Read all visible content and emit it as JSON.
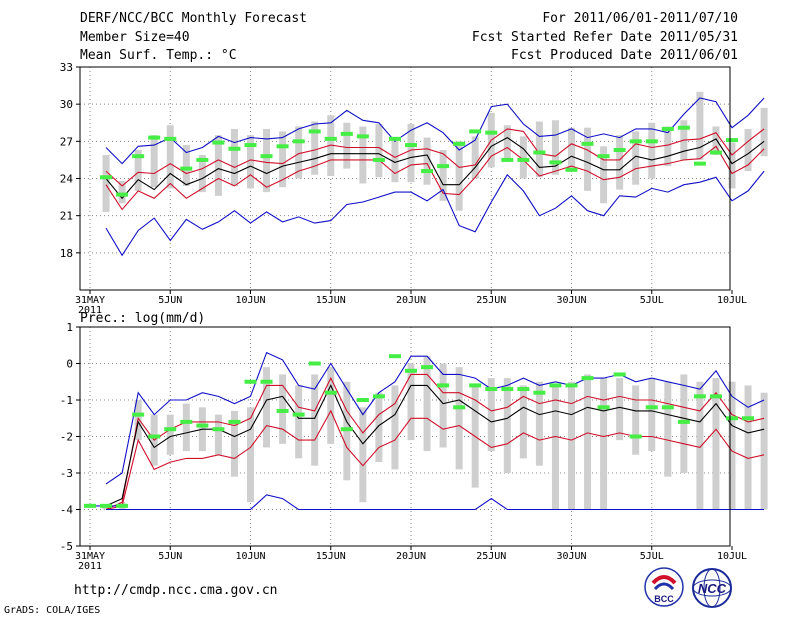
{
  "header": {
    "title": "DERF/NCC/BCC Monthly Forecast",
    "member_size": "Member Size=40",
    "variable": "Mean Surf. Temp.: °C",
    "period": "For 2011/06/01-2011/07/10",
    "started": "Fcst Started Refer Date 2011/05/31",
    "produced": "Fcst Produced Date 2011/06/01"
  },
  "footer": {
    "url": "http://cmdp.ncc.cma.gov.cn",
    "credit": "GrADS: COLA/IGES",
    "logo_left_text": "BCC",
    "logo_right_text": "NCC"
  },
  "colors": {
    "bar": "#cfcfcf",
    "median": "#000000",
    "quartile": "#d0102a",
    "extreme": "#1010c8",
    "obs": "#44ee44",
    "grid": "#888888"
  },
  "chart_data": [
    {
      "type": "line",
      "title": "Mean Surf. Temp.: °C",
      "x_tick_labels": [
        "31MAY",
        "5JUN",
        "10JUN",
        "15JUN",
        "20JUN",
        "25JUN",
        "30JUN",
        "5JUL",
        "10JUL"
      ],
      "x_tick_day_index": [
        0,
        5,
        10,
        15,
        20,
        25,
        30,
        35,
        40
      ],
      "year_label": "2011",
      "ylim": [
        15,
        33
      ],
      "y_ticks": [
        18,
        21,
        24,
        27,
        30,
        33
      ],
      "series": [
        {
          "name": "max",
          "color": "#1010c8",
          "start_index": 1,
          "values": [
            26.5,
            25.2,
            26.6,
            26.7,
            27.3,
            26.1,
            26.5,
            27.4,
            26.9,
            27.3,
            27.2,
            27.3,
            28.0,
            28.4,
            28.5,
            29.5,
            28.7,
            28.5,
            27.0,
            27.9,
            28.5,
            27.7,
            26.3,
            27.1,
            29.8,
            30.0,
            28.4,
            27.4,
            27.5,
            28.0,
            27.3,
            27.6,
            27.3,
            28.0,
            28.0,
            27.7,
            29.2,
            30.5,
            30.2,
            28.1,
            29.1,
            30.5
          ]
        },
        {
          "name": "upper_quartile",
          "color": "#d0102a",
          "start_index": 1,
          "values": [
            24.6,
            23.4,
            24.5,
            24.4,
            25.2,
            24.4,
            24.8,
            25.5,
            24.9,
            25.5,
            25.3,
            25.2,
            26.0,
            26.3,
            26.7,
            26.5,
            26.5,
            26.5,
            25.7,
            26.3,
            26.4,
            26.0,
            24.9,
            25.1,
            27.1,
            28.0,
            27.8,
            26.0,
            25.8,
            26.8,
            26.3,
            25.5,
            25.5,
            26.8,
            26.5,
            26.7,
            27.1,
            27.2,
            27.7,
            25.9,
            27.0,
            28.0
          ]
        },
        {
          "name": "median",
          "color": "#000000",
          "start_index": 1,
          "values": [
            24.0,
            22.4,
            23.9,
            23.1,
            24.4,
            23.5,
            24.0,
            24.8,
            24.4,
            25.0,
            24.4,
            25.0,
            25.3,
            25.6,
            26.0,
            26.0,
            26.0,
            26.0,
            25.3,
            25.7,
            25.9,
            23.5,
            23.5,
            24.9,
            26.6,
            27.3,
            26.4,
            24.9,
            25.0,
            25.8,
            25.3,
            24.7,
            24.7,
            25.8,
            25.5,
            25.8,
            26.2,
            26.5,
            27.2,
            25.2,
            26.0,
            27.0
          ]
        },
        {
          "name": "lower_quartile",
          "color": "#d0102a",
          "start_index": 1,
          "values": [
            23.5,
            21.5,
            23.0,
            22.4,
            23.6,
            22.4,
            23.2,
            24.0,
            23.4,
            24.3,
            23.3,
            23.9,
            24.6,
            25.0,
            25.5,
            25.5,
            25.5,
            25.5,
            24.4,
            25.1,
            25.2,
            22.8,
            22.7,
            24.1,
            25.8,
            26.5,
            25.5,
            24.2,
            24.6,
            25.0,
            24.6,
            23.9,
            24.1,
            24.8,
            25.0,
            25.2,
            25.5,
            25.6,
            26.6,
            24.4,
            25.1,
            26.4
          ]
        },
        {
          "name": "min",
          "color": "#1010c8",
          "start_index": 1,
          "values": [
            20.0,
            17.8,
            19.8,
            20.8,
            19.0,
            20.7,
            19.9,
            20.5,
            21.4,
            20.4,
            21.3,
            20.5,
            20.9,
            20.4,
            20.6,
            21.9,
            22.1,
            22.5,
            22.9,
            22.9,
            22.2,
            23.1,
            20.2,
            19.7,
            22.1,
            24.3,
            23.0,
            21.0,
            21.6,
            22.6,
            21.4,
            21.0,
            22.6,
            22.5,
            23.2,
            22.9,
            23.5,
            23.7,
            24.1,
            22.2,
            23.0,
            24.6
          ]
        }
      ],
      "bars": {
        "start_index": 1,
        "low": [
          21.3,
          22.0,
          23.0,
          23.3,
          23.2,
          23.4,
          22.9,
          22.6,
          23.4,
          23.2,
          22.9,
          23.3,
          24.0,
          24.3,
          24.2,
          24.8,
          23.6,
          24.1,
          23.7,
          23.7,
          23.5,
          22.2,
          21.4,
          24.0,
          24.9,
          25.5,
          24.0,
          24.1,
          24.3,
          24.7,
          23.0,
          22.0,
          23.1,
          23.5,
          24.0,
          25.0,
          25.5,
          25.5,
          25.9,
          23.2,
          24.6,
          25.8
        ],
        "high": [
          25.9,
          23.8,
          26.3,
          27.5,
          28.3,
          26.7,
          25.9,
          27.5,
          28.0,
          27.5,
          28.0,
          27.8,
          28.2,
          28.6,
          29.1,
          28.5,
          28.2,
          28.4,
          27.1,
          28.4,
          27.3,
          26.3,
          27.0,
          27.4,
          29.3,
          28.3,
          27.4,
          28.6,
          28.7,
          28.1,
          28.1,
          26.6,
          27.5,
          27.8,
          28.5,
          28.2,
          28.7,
          31.0,
          28.2,
          26.9,
          28.0,
          29.7
        ]
      },
      "observed": {
        "start_index": 1,
        "values": [
          24.1,
          22.7,
          25.8,
          27.3,
          27.2,
          24.8,
          25.5,
          26.9,
          26.4,
          26.7,
          25.8,
          26.6,
          27.0,
          27.8,
          27.2,
          27.6,
          27.4,
          25.5,
          27.2,
          26.7,
          24.6,
          25.0,
          26.8,
          27.8,
          27.7,
          25.5,
          25.5,
          26.1,
          25.3,
          24.7,
          26.8,
          25.8,
          26.3,
          27.0,
          27.0,
          28.0,
          28.1,
          25.2,
          26.1,
          27.1
        ]
      }
    },
    {
      "type": "line",
      "title": "Prec.: log(mm/d)",
      "x_tick_labels": [
        "31MAY",
        "5JUN",
        "10JUN",
        "15JUN",
        "20JUN",
        "25JUN",
        "30JUN",
        "5JUL",
        "10JUL"
      ],
      "x_tick_day_index": [
        0,
        5,
        10,
        15,
        20,
        25,
        30,
        35,
        40
      ],
      "year_label": "2011",
      "ylim": [
        -5,
        1
      ],
      "y_ticks": [
        1,
        0,
        -1,
        -2,
        -3,
        -4,
        -5
      ],
      "series": [
        {
          "name": "max",
          "color": "#1010c8",
          "start_index": 1,
          "values": [
            -3.3,
            -3.0,
            -0.8,
            -1.4,
            -1.0,
            -1.0,
            -0.8,
            -0.9,
            -1.1,
            -0.9,
            0.3,
            0.1,
            -0.6,
            -0.7,
            0.0,
            -0.7,
            -1.4,
            -0.8,
            -0.5,
            0.2,
            0.2,
            -0.3,
            -0.3,
            -0.4,
            -0.7,
            -0.6,
            -0.4,
            -0.6,
            -0.5,
            -0.6,
            -0.4,
            -0.4,
            -0.3,
            -0.5,
            -0.4,
            -0.5,
            -0.6,
            -0.7,
            -0.2,
            -0.9,
            -1.2,
            -1.0
          ]
        },
        {
          "name": "upper_quartile",
          "color": "#d0102a",
          "start_index": 1,
          "values": [
            -4.0,
            -3.8,
            -1.5,
            -2.1,
            -1.8,
            -1.6,
            -1.6,
            -1.6,
            -1.7,
            -1.5,
            -0.6,
            -0.6,
            -1.2,
            -1.3,
            -0.4,
            -1.3,
            -1.9,
            -1.4,
            -1.1,
            -0.3,
            -0.3,
            -0.8,
            -0.8,
            -1.0,
            -1.3,
            -1.2,
            -0.9,
            -1.1,
            -1.0,
            -1.1,
            -0.9,
            -1.0,
            -0.9,
            -1.0,
            -1.0,
            -1.1,
            -1.2,
            -1.3,
            -0.8,
            -1.4,
            -1.6,
            -1.5
          ]
        },
        {
          "name": "median",
          "color": "#000000",
          "start_index": 1,
          "values": [
            -3.9,
            -3.7,
            -1.6,
            -2.3,
            -2.0,
            -1.9,
            -1.8,
            -1.8,
            -2.0,
            -1.8,
            -1.0,
            -0.9,
            -1.5,
            -1.5,
            -0.6,
            -1.6,
            -2.2,
            -1.7,
            -1.4,
            -0.6,
            -0.6,
            -1.1,
            -1.0,
            -1.3,
            -1.6,
            -1.5,
            -1.2,
            -1.4,
            -1.3,
            -1.4,
            -1.2,
            -1.3,
            -1.2,
            -1.3,
            -1.3,
            -1.4,
            -1.5,
            -1.6,
            -1.1,
            -1.7,
            -1.9,
            -1.8
          ]
        },
        {
          "name": "lower_quartile",
          "color": "#d0102a",
          "start_index": 1,
          "values": [
            -4.0,
            -3.9,
            -2.1,
            -2.9,
            -2.7,
            -2.6,
            -2.6,
            -2.5,
            -2.6,
            -2.3,
            -1.7,
            -1.8,
            -2.1,
            -2.1,
            -1.3,
            -2.3,
            -2.8,
            -2.3,
            -2.1,
            -1.5,
            -1.5,
            -1.8,
            -1.7,
            -2.0,
            -2.3,
            -2.2,
            -1.9,
            -2.1,
            -2.0,
            -2.1,
            -1.9,
            -2.0,
            -1.9,
            -2.0,
            -2.0,
            -2.1,
            -2.2,
            -2.3,
            -1.8,
            -2.4,
            -2.6,
            -2.5
          ]
        },
        {
          "name": "min",
          "color": "#1010c8",
          "start_index": 1,
          "values": [
            -4.0,
            -4.0,
            -4.0,
            -4.0,
            -4.0,
            -4.0,
            -4.0,
            -4.0,
            -4.0,
            -4.0,
            -3.6,
            -3.7,
            -4.0,
            -4.0,
            -4.0,
            -4.0,
            -4.0,
            -4.0,
            -4.0,
            -4.0,
            -4.0,
            -4.0,
            -4.0,
            -4.0,
            -3.7,
            -4.0,
            -4.0,
            -4.0,
            -4.0,
            -4.0,
            -4.0,
            -4.0,
            -4.0,
            -4.0,
            -4.0,
            -4.0,
            -4.0,
            -4.0,
            -4.0,
            -4.0,
            -4.0,
            -4.0
          ]
        },
        {
          "name": "observed_line",
          "color": "#1010c8",
          "start_index": 0,
          "values": [
            -3.9,
            -3.9,
            -3.9
          ]
        }
      ],
      "bars": {
        "start_index": 1,
        "low": [
          -4.0,
          -4.0,
          -2.1,
          -2.8,
          -2.5,
          -2.4,
          -2.4,
          -2.5,
          -3.1,
          -3.8,
          -2.3,
          -2.2,
          -2.6,
          -2.8,
          -2.2,
          -3.2,
          -3.8,
          -2.7,
          -2.9,
          -2.1,
          -2.4,
          -2.3,
          -2.9,
          -3.4,
          -2.4,
          -3.0,
          -2.6,
          -2.8,
          -4.0,
          -4.0,
          -4.0,
          -4.0,
          -2.1,
          -2.5,
          -2.4,
          -3.1,
          -3.0,
          -4.0,
          -4.0,
          -4.0,
          -4.0,
          -4.0
        ],
        "high": [
          -3.9,
          -3.8,
          -1.0,
          -1.4,
          -1.4,
          -1.1,
          -1.2,
          -1.4,
          -1.3,
          -1.2,
          -0.1,
          -0.3,
          -0.6,
          -0.3,
          -0.1,
          -0.5,
          -1.2,
          -0.8,
          -0.6,
          0.0,
          0.2,
          0.0,
          -0.1,
          -0.6,
          -0.4,
          -0.4,
          -0.6,
          -0.5,
          -0.6,
          -0.5,
          -0.3,
          -0.4,
          -0.4,
          -0.6,
          -0.4,
          -0.5,
          -0.3,
          -0.5,
          -0.4,
          -0.5,
          -0.6,
          -0.8
        ]
      },
      "observed": {
        "start_index": 0,
        "values": [
          -3.9,
          -3.9,
          -3.9,
          -1.4,
          -2.0,
          -1.8,
          -1.6,
          -1.7,
          -1.8,
          -1.6,
          -0.5,
          -0.5,
          -1.3,
          -1.4,
          0.0,
          -0.8,
          -1.8,
          -1.0,
          -0.9,
          0.2,
          -0.2,
          -0.1,
          -0.6,
          -1.2,
          -0.6,
          -0.7,
          -0.7,
          -0.7,
          -0.8,
          -0.6,
          -0.6,
          -0.4,
          -1.2,
          -0.3,
          -2.0,
          -1.2,
          -1.2,
          -1.6,
          -0.9,
          -0.9,
          -1.5,
          -1.5
        ]
      }
    }
  ]
}
